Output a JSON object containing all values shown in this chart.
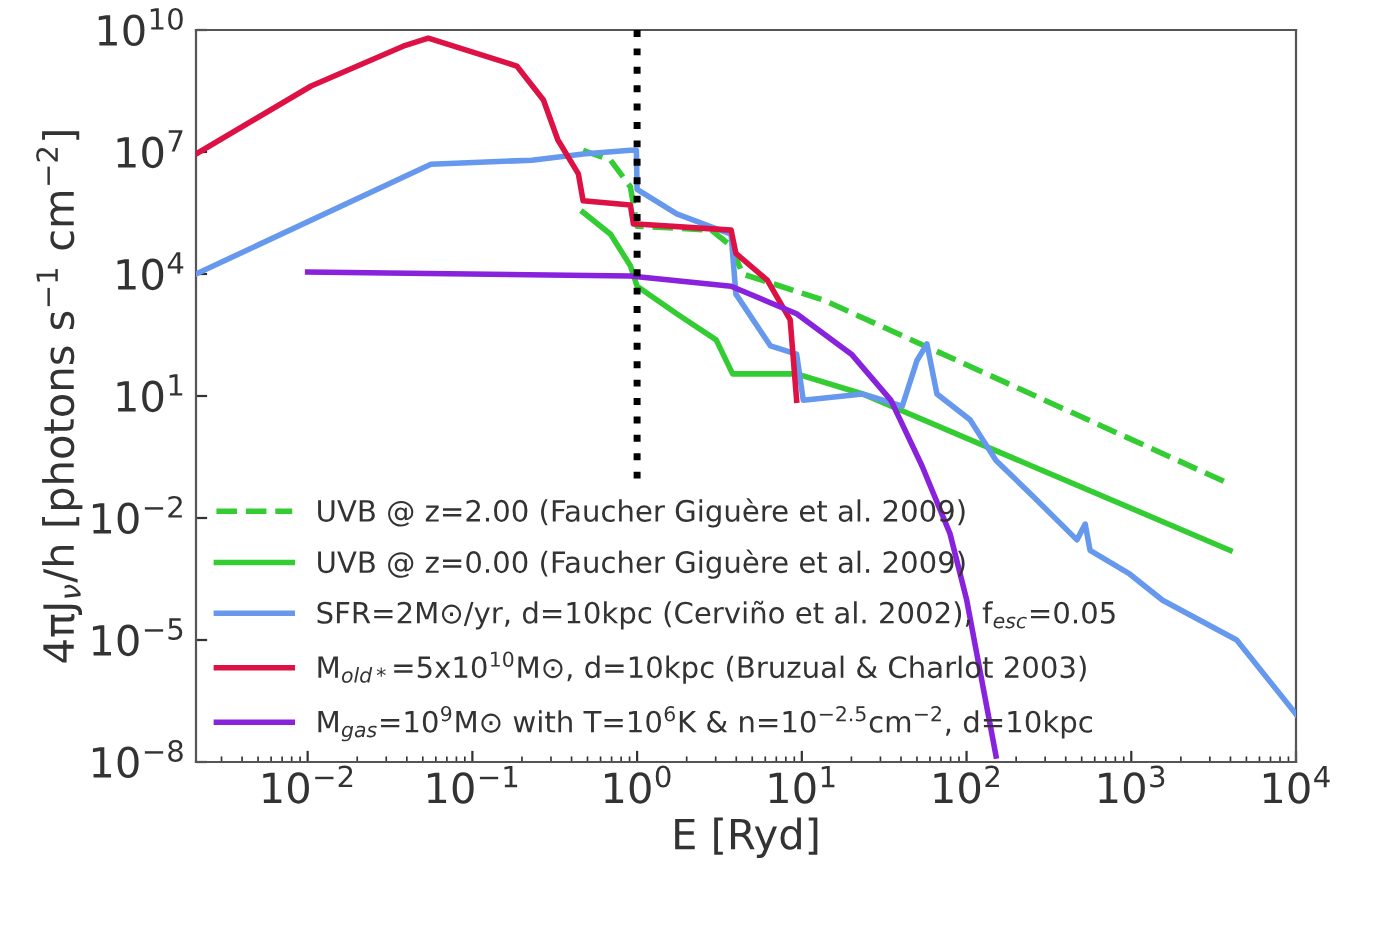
{
  "chart_data": {
    "type": "line",
    "xlabel": "E [Ryd]",
    "ylabel": "4πJ$_{ν}$/h [photons s$^{−1}$ cm$^{−2}$]",
    "log": "xy",
    "legend": "bottom left",
    "grid": false,
    "xlim": [
      0.0021,
      10000
    ],
    "ylim": [
      1e-08,
      10000000000.0
    ],
    "xticks": [
      {
        "value": 0.01,
        "label": "10$^{−2}$"
      },
      {
        "value": 0.1,
        "label": "10$^{−1}$"
      },
      {
        "value": 1,
        "label": "10$^{0}$"
      },
      {
        "value": 10,
        "label": "10$^{1}$"
      },
      {
        "value": 100,
        "label": "10$^{2}$"
      },
      {
        "value": 1000,
        "label": "10$^{3}$"
      },
      {
        "value": 10000,
        "label": "10$^{4}$"
      }
    ],
    "yticks": [
      {
        "value": 1e-08,
        "label": "10$^{−8}$"
      },
      {
        "value": 1e-05,
        "label": "10$^{−5}$"
      },
      {
        "value": 0.01,
        "label": "10$^{−2}$"
      },
      {
        "value": 10,
        "label": "10$^{1}$"
      },
      {
        "value": 10000,
        "label": "10$^{4}$"
      },
      {
        "value": 10000000.0,
        "label": "10$^{7}$"
      },
      {
        "value": 10000000000.0,
        "label": "10$^{10}$"
      }
    ],
    "series": [
      {
        "name": "UVB @ z=2.00 (Faucher Giguère et al. 2009)",
        "color": "#33cc33",
        "line_style": "dashed",
        "x": [
          0.47,
          0.69,
          0.91,
          1.0,
          2.82,
          3.72,
          4.37,
          13.5,
          3981
        ],
        "values": [
          11000000.0,
          6300000.0,
          1400000.0,
          150000.0,
          120000.0,
          49000.0,
          10000.0,
          2300.0,
          0.068
        ]
      },
      {
        "name": "UVB @ z=0.00 (Faucher Giguère et al. 2009)",
        "color": "#33cc33",
        "line_style": "solid",
        "x": [
          0.47,
          0.69,
          0.91,
          1.0,
          1.74,
          3.02,
          3.8,
          9.3,
          23.4,
          3981
        ],
        "values": [
          330000.0,
          95000.0,
          16000.0,
          5000.0,
          1050.0,
          240,
          35,
          35,
          11.2,
          0.0016
        ]
      },
      {
        "name": "SFR=2M⊙/yr, d=10kpc (Cerviño et al. 2002), f$_{esc}$=0.05",
        "color": "#6699ee",
        "line_style": "solid",
        "x": [
          0.0021,
          0.056,
          0.23,
          0.47,
          0.91,
          0.99,
          1.0,
          1.74,
          3.72,
          3.98,
          6.46,
          9.3,
          10.2,
          23.4,
          40.7,
          50.1,
          57.5,
          66.1,
          105,
          151,
          245,
          468,
          525,
          562,
          977,
          1549,
          4365,
          10000
        ],
        "values": [
          10000.0,
          5000000.0,
          6300000.0,
          8900000.0,
          11000000.0,
          11000000.0,
          1200000.0,
          300000.0,
          95000.0,
          3200.0,
          170,
          107,
          7.9,
          11.2,
          5.6,
          76,
          190,
          11.2,
          2.6,
          0.26,
          0.039,
          0.0029,
          0.0071,
          0.0016,
          0.00042,
          9.5e-05,
          1e-05,
          1.5e-07
        ]
      },
      {
        "name": "M$_{old*}$=5x10$^{10}$M⊙, d=10kpc (Bruzual & Charlot 2003)",
        "color": "#dd1144",
        "line_style": "solid",
        "x": [
          0.0021,
          0.0105,
          0.038,
          0.054,
          0.186,
          0.27,
          0.33,
          0.44,
          0.47,
          0.91,
          0.95,
          1.0,
          3.72,
          3.98,
          6.17,
          8.5,
          9.3
        ],
        "values": [
          8900000.0,
          420000000.0,
          4000000000.0,
          6300000000.0,
          1300000000.0,
          190000000.0,
          20000000.0,
          2900000.0,
          630000.0,
          500000.0,
          170000.0,
          170000.0,
          120000.0,
          32000.0,
          7100.0,
          740,
          7.9
        ]
      },
      {
        "name": "M$_{gas}$=10$^{9}$M⊙ with T=10$^{6}$K & n=10$^{−2.5}$cm$^{−2}$, d=10kpc",
        "color": "#8822dd",
        "line_style": "solid",
        "x": [
          0.01,
          0.91,
          3.72,
          9.3,
          20,
          34.7,
          53.7,
          79.4,
          100,
          151
        ],
        "values": [
          11200.0,
          8900.0,
          5000.0,
          1050.0,
          107,
          7.9,
          0.19,
          0.0041,
          0.0001,
          1.4e-08
        ]
      },
      {
        "color": "#000000",
        "line_style": "dotted",
        "x": [
          1,
          1
        ],
        "values": [
          10000000000.0,
          0.085
        ]
      }
    ]
  }
}
